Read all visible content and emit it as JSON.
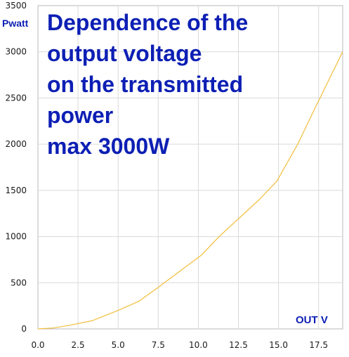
{
  "chart_data": {
    "type": "line",
    "title_lines": [
      "Dependence of the",
      "output voltage",
      "on the transmitted",
      "power",
      "max 3000W"
    ],
    "ylabel": "Pwatt",
    "xlabel": "OUT V",
    "xlim": [
      0,
      19
    ],
    "ylim": [
      0,
      3500
    ],
    "x_ticks": [
      "0.0",
      "2.5",
      "5.0",
      "7.5",
      "10.0",
      "12.5",
      "15.0",
      "17.5"
    ],
    "y_ticks": [
      "0",
      "500",
      "1000",
      "1500",
      "2000",
      "2500",
      "3000",
      "3500"
    ],
    "x_tick_values": [
      0,
      2.5,
      5,
      7.5,
      10,
      12.5,
      15,
      17.5
    ],
    "y_tick_values": [
      0,
      500,
      1000,
      1500,
      2000,
      2500,
      3000,
      3500
    ],
    "grid": true,
    "series": [
      {
        "color": "#f2be3c",
        "x": [
          0,
          1,
          2,
          3.4,
          5,
          6.3,
          7.5,
          10.2,
          11.3,
          13.8,
          14.9,
          16.2,
          17.3,
          19
        ],
        "y": [
          0,
          10,
          40,
          90,
          200,
          300,
          450,
          800,
          1000,
          1400,
          1600,
          2000,
          2400,
          3000
        ]
      }
    ]
  }
}
